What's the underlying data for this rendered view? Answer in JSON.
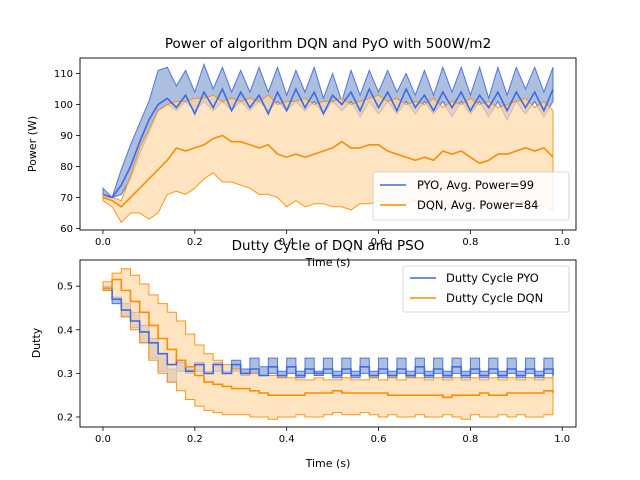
{
  "colors": {
    "pyo": "#4169E1",
    "pyo_band": "#5B7FC0",
    "dqn": "#FF8C00",
    "dqn_band": "#FFD9A8"
  },
  "chart_data": [
    {
      "type": "line",
      "title": "Power of algorithm DQN and PyO with 500W/m2",
      "xlabel": "Time (s)",
      "ylabel": "Power (W)",
      "xlim": [
        -0.05,
        1.03
      ],
      "ylim": [
        59.5,
        115
      ],
      "xticks": [
        "0.0",
        "0.2",
        "0.4",
        "0.6",
        "0.8",
        "1.0"
      ],
      "yticks": [
        "60",
        "70",
        "80",
        "90",
        "100",
        "110"
      ],
      "legend": "bottom-right",
      "x": [
        0.0,
        0.02,
        0.04,
        0.06,
        0.08,
        0.1,
        0.12,
        0.14,
        0.16,
        0.18,
        0.2,
        0.22,
        0.24,
        0.26,
        0.28,
        0.3,
        0.32,
        0.34,
        0.36,
        0.38,
        0.4,
        0.42,
        0.44,
        0.46,
        0.48,
        0.5,
        0.52,
        0.54,
        0.56,
        0.58,
        0.6,
        0.62,
        0.64,
        0.66,
        0.68,
        0.7,
        0.72,
        0.74,
        0.76,
        0.78,
        0.8,
        0.82,
        0.84,
        0.86,
        0.88,
        0.9,
        0.92,
        0.94,
        0.96,
        0.98
      ],
      "series": [
        {
          "name": "PYO, Avg. Power=99",
          "mean": [
            71,
            70,
            74,
            80,
            88,
            95,
            100,
            102,
            99,
            103,
            97,
            104,
            99,
            105,
            98,
            104,
            99,
            103,
            97,
            104,
            98,
            105,
            99,
            104,
            97,
            103,
            100,
            104,
            98,
            105,
            99,
            104,
            98,
            105,
            99,
            103,
            98,
            104,
            99,
            104,
            98,
            103,
            99,
            104,
            98,
            104,
            99,
            104,
            98,
            105
          ],
          "upper": [
            73,
            70,
            79,
            87,
            94,
            101,
            111,
            112,
            106,
            111,
            104,
            113,
            105,
            112,
            104,
            111,
            104,
            112,
            104,
            112,
            103,
            111,
            104,
            112,
            102,
            110,
            101,
            111,
            103,
            111,
            104,
            111,
            104,
            110,
            103,
            111,
            103,
            112,
            104,
            112,
            103,
            112,
            102,
            112,
            103,
            112,
            105,
            112,
            104,
            112
          ],
          "lower": [
            70,
            70,
            71,
            76,
            84,
            91,
            98,
            100,
            98,
            101,
            98,
            101,
            98,
            101,
            98,
            101,
            98,
            101,
            98,
            101,
            98,
            101,
            98,
            101,
            97,
            101,
            98,
            101,
            96,
            101,
            97,
            101,
            97,
            101,
            97,
            101,
            97,
            101,
            96,
            101,
            97,
            101,
            96,
            101,
            95,
            101,
            97,
            101,
            96,
            101
          ]
        },
        {
          "name": "DQN, Avg. Power=84",
          "mean": [
            70,
            69,
            67,
            70,
            73,
            76,
            79,
            82,
            86,
            85,
            86,
            87,
            89,
            90,
            88,
            88,
            87,
            86,
            87,
            84,
            83,
            84,
            83,
            84,
            85,
            86,
            88,
            86,
            86,
            87,
            87,
            85,
            84,
            83,
            82,
            83,
            82,
            85,
            84,
            85,
            83,
            81,
            82,
            84,
            84,
            85,
            86,
            85,
            86,
            83
          ],
          "upper": [
            71,
            70,
            69,
            77,
            86,
            92,
            98,
            100,
            101,
            101,
            102,
            102,
            103,
            101,
            102,
            101,
            102,
            101,
            103,
            100,
            101,
            101,
            102,
            100,
            101,
            101,
            102,
            100,
            101,
            102,
            103,
            101,
            102,
            100,
            101,
            100,
            102,
            99,
            101,
            100,
            102,
            100,
            101,
            99,
            100,
            101,
            102,
            99,
            101,
            98
          ],
          "lower": [
            69,
            67,
            62,
            65,
            65,
            63,
            65,
            71,
            72,
            71,
            73,
            76,
            78,
            75,
            75,
            74,
            73,
            71,
            71,
            70,
            67,
            69,
            67,
            68,
            68,
            67,
            67,
            66,
            68,
            68,
            69,
            68,
            67,
            68,
            69,
            67,
            68,
            67,
            68,
            69,
            69,
            68,
            67,
            68,
            68,
            69,
            68,
            68,
            67,
            66
          ]
        }
      ]
    },
    {
      "type": "line",
      "title": "Dutty Cycle of DQN and PSO",
      "xlabel": "Time (s)",
      "ylabel": "Dutty",
      "xlim": [
        -0.05,
        1.03
      ],
      "ylim": [
        0.177,
        0.56
      ],
      "xticks": [
        "0.0",
        "0.2",
        "0.4",
        "0.6",
        "0.8",
        "1.0"
      ],
      "yticks": [
        "0.2",
        "0.3",
        "0.4",
        "0.5"
      ],
      "legend": "top-right",
      "x": [
        0.0,
        0.02,
        0.04,
        0.06,
        0.08,
        0.1,
        0.12,
        0.14,
        0.16,
        0.18,
        0.2,
        0.22,
        0.24,
        0.26,
        0.28,
        0.3,
        0.32,
        0.34,
        0.36,
        0.38,
        0.4,
        0.42,
        0.44,
        0.46,
        0.48,
        0.5,
        0.52,
        0.54,
        0.56,
        0.58,
        0.6,
        0.62,
        0.64,
        0.66,
        0.68,
        0.7,
        0.72,
        0.74,
        0.76,
        0.78,
        0.8,
        0.82,
        0.84,
        0.86,
        0.88,
        0.9,
        0.92,
        0.94,
        0.96,
        0.98
      ],
      "series": [
        {
          "name": "Dutty Cycle PYO",
          "mean": [
            0.495,
            0.47,
            0.445,
            0.42,
            0.395,
            0.37,
            0.345,
            0.32,
            0.33,
            0.305,
            0.32,
            0.3,
            0.32,
            0.3,
            0.32,
            0.3,
            0.31,
            0.295,
            0.315,
            0.295,
            0.315,
            0.295,
            0.31,
            0.3,
            0.31,
            0.295,
            0.31,
            0.295,
            0.315,
            0.295,
            0.31,
            0.295,
            0.31,
            0.295,
            0.315,
            0.295,
            0.31,
            0.295,
            0.315,
            0.295,
            0.31,
            0.295,
            0.31,
            0.295,
            0.31,
            0.295,
            0.31,
            0.295,
            0.31,
            0.295
          ],
          "upper": [
            0.5,
            0.475,
            0.46,
            0.44,
            0.41,
            0.38,
            0.345,
            0.31,
            0.325,
            0.31,
            0.325,
            0.305,
            0.325,
            0.305,
            0.33,
            0.31,
            0.335,
            0.315,
            0.335,
            0.305,
            0.335,
            0.305,
            0.335,
            0.305,
            0.335,
            0.305,
            0.335,
            0.305,
            0.335,
            0.305,
            0.335,
            0.305,
            0.335,
            0.305,
            0.335,
            0.305,
            0.335,
            0.305,
            0.335,
            0.305,
            0.335,
            0.305,
            0.335,
            0.305,
            0.335,
            0.305,
            0.335,
            0.305,
            0.335,
            0.305
          ],
          "lower": [
            0.49,
            0.46,
            0.43,
            0.405,
            0.37,
            0.335,
            0.305,
            0.28,
            0.305,
            0.3,
            0.305,
            0.3,
            0.305,
            0.3,
            0.305,
            0.295,
            0.3,
            0.295,
            0.3,
            0.29,
            0.3,
            0.29,
            0.3,
            0.295,
            0.3,
            0.29,
            0.3,
            0.29,
            0.3,
            0.29,
            0.3,
            0.29,
            0.3,
            0.29,
            0.3,
            0.29,
            0.3,
            0.29,
            0.3,
            0.29,
            0.3,
            0.29,
            0.3,
            0.29,
            0.3,
            0.29,
            0.3,
            0.29,
            0.3,
            0.29
          ]
        },
        {
          "name": "Dutty Cycle DQN",
          "mean": [
            0.495,
            0.515,
            0.49,
            0.465,
            0.44,
            0.41,
            0.38,
            0.355,
            0.33,
            0.315,
            0.295,
            0.28,
            0.275,
            0.27,
            0.265,
            0.265,
            0.26,
            0.255,
            0.25,
            0.25,
            0.25,
            0.25,
            0.255,
            0.255,
            0.255,
            0.26,
            0.255,
            0.255,
            0.255,
            0.255,
            0.255,
            0.25,
            0.25,
            0.25,
            0.25,
            0.25,
            0.25,
            0.245,
            0.25,
            0.25,
            0.25,
            0.255,
            0.25,
            0.25,
            0.255,
            0.255,
            0.255,
            0.255,
            0.26,
            0.255
          ],
          "upper": [
            0.51,
            0.53,
            0.54,
            0.525,
            0.505,
            0.48,
            0.46,
            0.44,
            0.42,
            0.39,
            0.365,
            0.345,
            0.33,
            0.32,
            0.31,
            0.3,
            0.3,
            0.295,
            0.295,
            0.29,
            0.29,
            0.285,
            0.285,
            0.29,
            0.285,
            0.285,
            0.29,
            0.285,
            0.285,
            0.29,
            0.285,
            0.29,
            0.285,
            0.29,
            0.29,
            0.285,
            0.29,
            0.285,
            0.29,
            0.285,
            0.29,
            0.285,
            0.29,
            0.285,
            0.29,
            0.285,
            0.29,
            0.285,
            0.29,
            0.285
          ],
          "lower": [
            0.49,
            0.47,
            0.43,
            0.4,
            0.37,
            0.33,
            0.3,
            0.28,
            0.26,
            0.24,
            0.225,
            0.215,
            0.21,
            0.205,
            0.205,
            0.205,
            0.2,
            0.2,
            0.195,
            0.2,
            0.2,
            0.205,
            0.2,
            0.2,
            0.205,
            0.21,
            0.205,
            0.205,
            0.21,
            0.205,
            0.2,
            0.205,
            0.2,
            0.2,
            0.205,
            0.2,
            0.2,
            0.205,
            0.2,
            0.195,
            0.205,
            0.2,
            0.2,
            0.205,
            0.2,
            0.205,
            0.2,
            0.2,
            0.205,
            0.21
          ]
        }
      ]
    }
  ]
}
